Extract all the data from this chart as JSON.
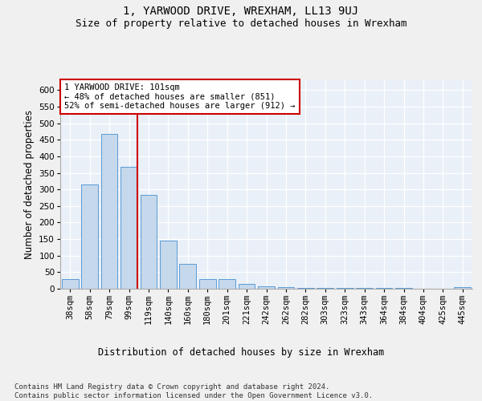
{
  "title": "1, YARWOOD DRIVE, WREXHAM, LL13 9UJ",
  "subtitle": "Size of property relative to detached houses in Wrexham",
  "xlabel": "Distribution of detached houses by size in Wrexham",
  "ylabel": "Number of detached properties",
  "categories": [
    "38sqm",
    "58sqm",
    "79sqm",
    "99sqm",
    "119sqm",
    "140sqm",
    "160sqm",
    "180sqm",
    "201sqm",
    "221sqm",
    "242sqm",
    "262sqm",
    "282sqm",
    "303sqm",
    "323sqm",
    "343sqm",
    "364sqm",
    "384sqm",
    "404sqm",
    "425sqm",
    "445sqm"
  ],
  "values": [
    30,
    315,
    468,
    368,
    283,
    145,
    75,
    30,
    28,
    15,
    8,
    5,
    3,
    2,
    2,
    2,
    2,
    2,
    1,
    1,
    4
  ],
  "bar_color": "#c5d8ec",
  "bar_edge_color": "#5b9bd5",
  "vline_color": "#cc0000",
  "annotation_text": "1 YARWOOD DRIVE: 101sqm\n← 48% of detached houses are smaller (851)\n52% of semi-detached houses are larger (912) →",
  "annotation_box_color": "#ffffff",
  "annotation_box_edge": "#cc0000",
  "ylim": [
    0,
    630
  ],
  "yticks": [
    0,
    50,
    100,
    150,
    200,
    250,
    300,
    350,
    400,
    450,
    500,
    550,
    600
  ],
  "footer": "Contains HM Land Registry data © Crown copyright and database right 2024.\nContains public sector information licensed under the Open Government Licence v3.0.",
  "bg_color": "#eaf0f8",
  "fig_color": "#f0f0f0",
  "grid_color": "#ffffff",
  "title_fontsize": 10,
  "subtitle_fontsize": 9,
  "axis_label_fontsize": 8.5,
  "tick_fontsize": 7.5,
  "footer_fontsize": 6.5,
  "annot_fontsize": 7.5,
  "vline_x_index": 3
}
